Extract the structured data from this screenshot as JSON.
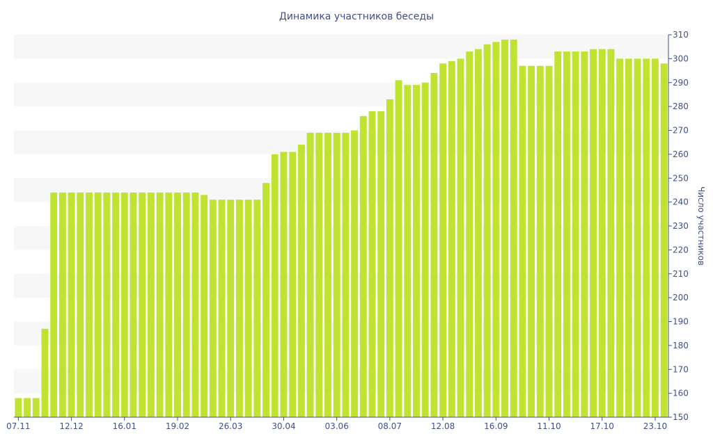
{
  "chart_data": {
    "type": "bar",
    "title": "Динамика участников беседы",
    "xlabel": "",
    "ylabel": "Число участников",
    "ylim": [
      150,
      310
    ],
    "y_ticks": [
      150,
      160,
      170,
      180,
      190,
      200,
      210,
      220,
      230,
      240,
      250,
      260,
      270,
      280,
      290,
      300,
      310
    ],
    "x_tick_labels": [
      "07.11",
      "12.12",
      "16.01",
      "19.02",
      "26.03",
      "30.04",
      "03.06",
      "08.07",
      "12.08",
      "16.09",
      "11.10",
      "17.10",
      "23.10"
    ],
    "x_tick_positions": [
      0,
      6,
      12,
      18,
      24,
      30,
      36,
      42,
      48,
      54,
      60,
      66,
      72
    ],
    "y_axis_position": "right",
    "grid": "horizontal bands",
    "colors": {
      "bar": "#bfe330",
      "band": "#f7f7f7",
      "text": "#3f4f8c",
      "axis": "#3f4f8c"
    },
    "values": [
      158,
      158,
      158,
      187,
      244,
      244,
      244,
      244,
      244,
      244,
      244,
      244,
      244,
      244,
      244,
      244,
      244,
      244,
      244,
      244,
      244,
      243,
      241,
      241,
      241,
      241,
      241,
      241,
      248,
      260,
      261,
      261,
      264,
      269,
      269,
      269,
      269,
      269,
      270,
      276,
      278,
      278,
      283,
      291,
      289,
      289,
      290,
      294,
      298,
      299,
      300,
      303,
      304,
      306,
      307,
      308,
      308,
      297,
      297,
      297,
      297,
      303,
      303,
      303,
      303,
      304,
      304,
      304,
      300,
      300,
      300,
      300,
      300,
      298
    ]
  }
}
